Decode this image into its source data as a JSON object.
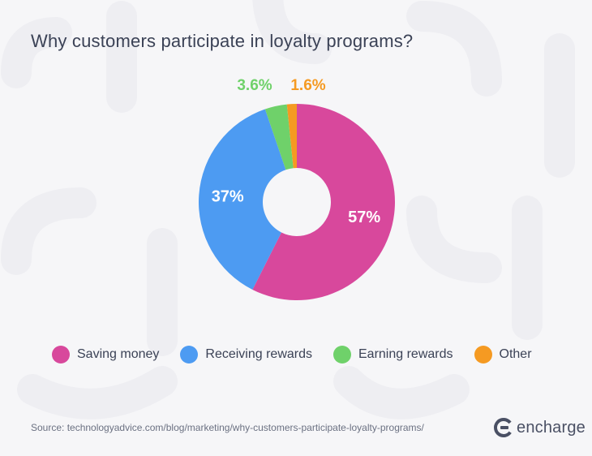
{
  "title": "Why customers participate in loyalty programs?",
  "chart_data": {
    "type": "pie",
    "categories": [
      "Saving money",
      "Receiving rewards",
      "Earning rewards",
      "Other"
    ],
    "values": [
      57,
      37,
      3.6,
      1.6
    ],
    "data_labels": [
      "57%",
      "37%",
      "3.6%",
      "1.6%"
    ],
    "colors": [
      "#d8489c",
      "#4d9bf2",
      "#6fd16a",
      "#f59a22"
    ],
    "donut": true,
    "legend_position": "bottom"
  },
  "legend": [
    {
      "label": "Saving money",
      "color": "#d8489c"
    },
    {
      "label": "Receiving rewards",
      "color": "#4d9bf2"
    },
    {
      "label": "Earning rewards",
      "color": "#6fd16a"
    },
    {
      "label": "Other",
      "color": "#f59a22"
    }
  ],
  "source": "Source: technologyadvice.com/blog/marketing/why-customers-participate-loyalty-programs/",
  "brand": {
    "name": "encharge",
    "color": "#4a5064"
  }
}
